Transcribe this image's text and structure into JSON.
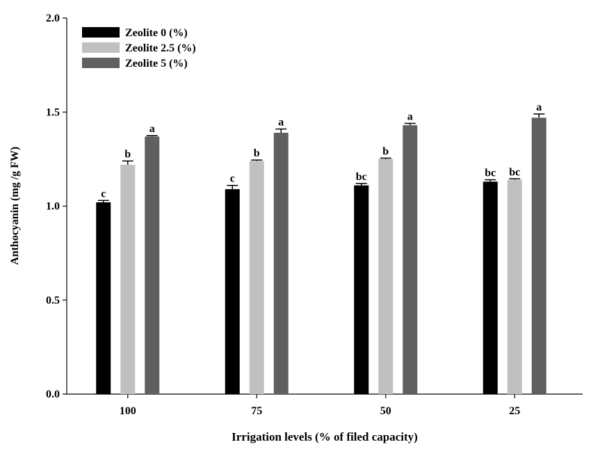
{
  "chart_data": {
    "type": "bar",
    "xlabel": "Irrigation levels (% of filed capacity)",
    "ylabel": "Anthocyanin (mg /g FW)",
    "ylim": [
      0,
      2.0
    ],
    "yticks": [
      "0.0",
      "0.5",
      "1.0",
      "1.5",
      "2.0"
    ],
    "categories": [
      "100",
      "75",
      "50",
      "25"
    ],
    "grid": false,
    "legend_position": "top-left",
    "series": [
      {
        "name": "Zeolite 0 (%)",
        "color": "#000000",
        "values": [
          1.02,
          1.09,
          1.11,
          1.13
        ],
        "errors": [
          0.01,
          0.02,
          0.01,
          0.01
        ],
        "labels": [
          "c",
          "c",
          "bc",
          "bc"
        ]
      },
      {
        "name": "Zeolite 2.5 (%)",
        "color": "#c0c0c0",
        "values": [
          1.22,
          1.24,
          1.25,
          1.14
        ],
        "errors": [
          0.02,
          0.005,
          0.005,
          0.005
        ],
        "labels": [
          "b",
          "b",
          "b",
          "bc"
        ]
      },
      {
        "name": "Zeolite 5 (%)",
        "color": "#606060",
        "values": [
          1.37,
          1.39,
          1.43,
          1.47
        ],
        "errors": [
          0.005,
          0.02,
          0.01,
          0.02
        ],
        "labels": [
          "a",
          "a",
          "a",
          "a"
        ]
      }
    ]
  }
}
